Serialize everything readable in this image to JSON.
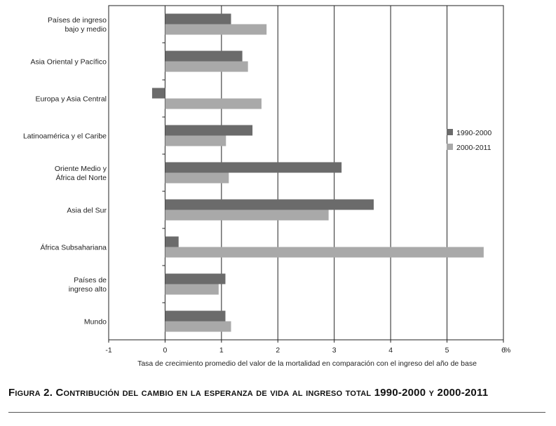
{
  "chart_data": {
    "type": "bar",
    "orientation": "horizontal",
    "categories": [
      [
        "Países de ingreso",
        "bajo y medio"
      ],
      [
        "Asia Oriental y Pacífico"
      ],
      [
        "Europa y Asia Central"
      ],
      [
        "Latinoamérica y el Caribe"
      ],
      [
        "Oriente Medio y",
        "África del Norte"
      ],
      [
        "Asia del Sur"
      ],
      [
        "África Subsahariana"
      ],
      [
        "Países de",
        "ingreso alto"
      ],
      [
        "Mundo"
      ]
    ],
    "series": [
      {
        "name": "1990-2000",
        "color": "#6b6b6b",
        "values": [
          1.17,
          1.37,
          -0.23,
          1.55,
          3.13,
          3.7,
          0.24,
          1.07,
          1.07
        ]
      },
      {
        "name": "2000-2011",
        "color": "#a9a9a9",
        "values": [
          1.8,
          1.47,
          1.71,
          1.08,
          1.13,
          2.9,
          5.65,
          0.95,
          1.17
        ]
      }
    ],
    "xlim": [
      -1,
      6
    ],
    "xticks": [
      "-1",
      "0",
      "1",
      "2",
      "3",
      "4",
      "5",
      "6"
    ],
    "x_unit": "%",
    "xlabel": "Tasa de crecimiento promedio del valor de la mortalidad en comparación con el ingreso del año de base",
    "grid": "vertical",
    "legend_position": "right"
  },
  "caption": "Figura 2. Contribución del cambio en la esperanza de vida al ingreso total 1990-2000 y 2000-2011"
}
